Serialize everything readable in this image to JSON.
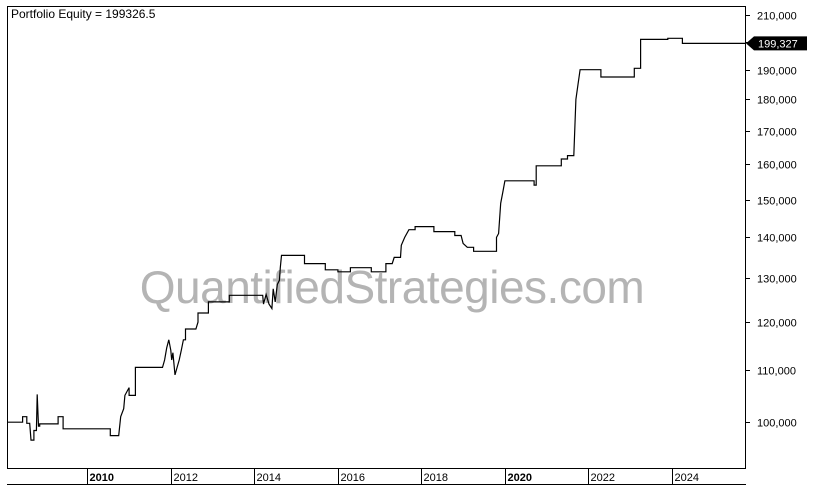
{
  "chart_data": {
    "type": "line",
    "title": "Portfolio Equity = 199326.5",
    "watermark": "QuantifiedStrategies.com",
    "last_value_label": "199,327",
    "y_scale": "log",
    "ylim": [
      92000,
      213000
    ],
    "xlim": [
      2008.1,
      2025.75
    ],
    "y_ticks": [
      {
        "value": 100000,
        "label": "100,000"
      },
      {
        "value": 110000,
        "label": "110,000"
      },
      {
        "value": 120000,
        "label": "120,000"
      },
      {
        "value": 130000,
        "label": "130,000"
      },
      {
        "value": 140000,
        "label": "140,000"
      },
      {
        "value": 150000,
        "label": "150,000"
      },
      {
        "value": 160000,
        "label": "160,000"
      },
      {
        "value": 170000,
        "label": "170,000"
      },
      {
        "value": 180000,
        "label": "180,000"
      },
      {
        "value": 190000,
        "label": "190,000"
      },
      {
        "value": 200000,
        "label": "200,000"
      },
      {
        "value": 210000,
        "label": "210,000"
      }
    ],
    "x_ticks": [
      {
        "value": 2010,
        "label": "2010",
        "bold": true
      },
      {
        "value": 2012,
        "label": "2012",
        "bold": false
      },
      {
        "value": 2014,
        "label": "2014",
        "bold": false
      },
      {
        "value": 2016,
        "label": "2016",
        "bold": false
      },
      {
        "value": 2018,
        "label": "2018",
        "bold": false
      },
      {
        "value": 2020,
        "label": "2020",
        "bold": true
      },
      {
        "value": 2022,
        "label": "2022",
        "bold": false
      },
      {
        "value": 2024,
        "label": "2024",
        "bold": false
      }
    ],
    "series": [
      {
        "values": [
          [
            2008.1,
            100000
          ],
          [
            2008.45,
            100000
          ],
          [
            2008.45,
            101000
          ],
          [
            2008.55,
            101000
          ],
          [
            2008.55,
            99800
          ],
          [
            2008.62,
            99800
          ],
          [
            2008.65,
            96800
          ],
          [
            2008.72,
            96800
          ],
          [
            2008.72,
            98500
          ],
          [
            2008.78,
            98500
          ],
          [
            2008.8,
            105200
          ],
          [
            2008.83,
            99300
          ],
          [
            2008.86,
            99300
          ],
          [
            2008.86,
            99700
          ],
          [
            2009.3,
            99700
          ],
          [
            2009.3,
            101000
          ],
          [
            2009.42,
            101000
          ],
          [
            2009.42,
            98800
          ],
          [
            2010.55,
            98800
          ],
          [
            2010.55,
            97600
          ],
          [
            2010.75,
            97600
          ],
          [
            2010.8,
            101000
          ],
          [
            2010.87,
            102500
          ],
          [
            2010.9,
            105000
          ],
          [
            2011.0,
            106500
          ],
          [
            2011.0,
            105000
          ],
          [
            2011.15,
            105000
          ],
          [
            2011.15,
            110500
          ],
          [
            2011.8,
            110500
          ],
          [
            2011.85,
            112000
          ],
          [
            2011.9,
            114500
          ],
          [
            2011.95,
            116200
          ],
          [
            2012.0,
            114000
          ],
          [
            2012.02,
            112000
          ],
          [
            2012.05,
            113500
          ],
          [
            2012.1,
            109000
          ],
          [
            2012.15,
            110500
          ],
          [
            2012.2,
            112000
          ],
          [
            2012.25,
            114000
          ],
          [
            2012.3,
            116200
          ],
          [
            2012.35,
            116200
          ],
          [
            2012.35,
            118500
          ],
          [
            2012.6,
            118500
          ],
          [
            2012.65,
            120000
          ],
          [
            2012.65,
            122000
          ],
          [
            2012.9,
            122000
          ],
          [
            2012.9,
            124500
          ],
          [
            2013.4,
            124500
          ],
          [
            2013.4,
            126000
          ],
          [
            2014.2,
            126000
          ],
          [
            2014.22,
            124000
          ],
          [
            2014.28,
            126200
          ],
          [
            2014.35,
            124000
          ],
          [
            2014.42,
            123000
          ],
          [
            2014.45,
            127500
          ],
          [
            2014.5,
            124500
          ],
          [
            2014.55,
            128500
          ],
          [
            2014.6,
            129500
          ],
          [
            2014.62,
            132500
          ],
          [
            2014.65,
            135500
          ],
          [
            2015.2,
            135500
          ],
          [
            2015.2,
            133500
          ],
          [
            2015.7,
            133500
          ],
          [
            2015.7,
            132000
          ],
          [
            2016.0,
            132000
          ],
          [
            2016.0,
            131500
          ],
          [
            2016.3,
            131500
          ],
          [
            2016.3,
            132500
          ],
          [
            2016.8,
            132500
          ],
          [
            2016.8,
            131500
          ],
          [
            2017.15,
            131500
          ],
          [
            2017.15,
            133500
          ],
          [
            2017.3,
            133500
          ],
          [
            2017.35,
            135000
          ],
          [
            2017.5,
            135000
          ],
          [
            2017.52,
            138000
          ],
          [
            2017.6,
            140000
          ],
          [
            2017.7,
            142000
          ],
          [
            2017.85,
            142000
          ],
          [
            2017.85,
            142800
          ],
          [
            2018.3,
            142800
          ],
          [
            2018.3,
            141500
          ],
          [
            2018.8,
            141500
          ],
          [
            2018.8,
            140500
          ],
          [
            2018.95,
            140500
          ],
          [
            2019.0,
            138500
          ],
          [
            2019.1,
            137500
          ],
          [
            2019.25,
            137500
          ],
          [
            2019.25,
            136500
          ],
          [
            2019.8,
            136500
          ],
          [
            2019.8,
            140000
          ],
          [
            2019.85,
            141000
          ],
          [
            2019.9,
            149000
          ],
          [
            2019.95,
            152000
          ],
          [
            2020.0,
            155200
          ],
          [
            2020.7,
            155200
          ],
          [
            2020.7,
            154000
          ],
          [
            2020.75,
            154000
          ],
          [
            2020.75,
            159500
          ],
          [
            2021.35,
            159500
          ],
          [
            2021.35,
            161500
          ],
          [
            2021.5,
            161500
          ],
          [
            2021.5,
            162500
          ],
          [
            2021.65,
            162500
          ],
          [
            2021.7,
            180000
          ],
          [
            2021.75,
            185000
          ],
          [
            2021.8,
            190000
          ],
          [
            2022.3,
            190000
          ],
          [
            2022.3,
            187500
          ],
          [
            2023.1,
            187500
          ],
          [
            2023.1,
            190500
          ],
          [
            2023.25,
            190500
          ],
          [
            2023.25,
            200800
          ],
          [
            2023.9,
            200800
          ],
          [
            2023.9,
            201200
          ],
          [
            2024.25,
            201200
          ],
          [
            2024.25,
            199327
          ],
          [
            2025.75,
            199327
          ]
        ]
      }
    ]
  }
}
